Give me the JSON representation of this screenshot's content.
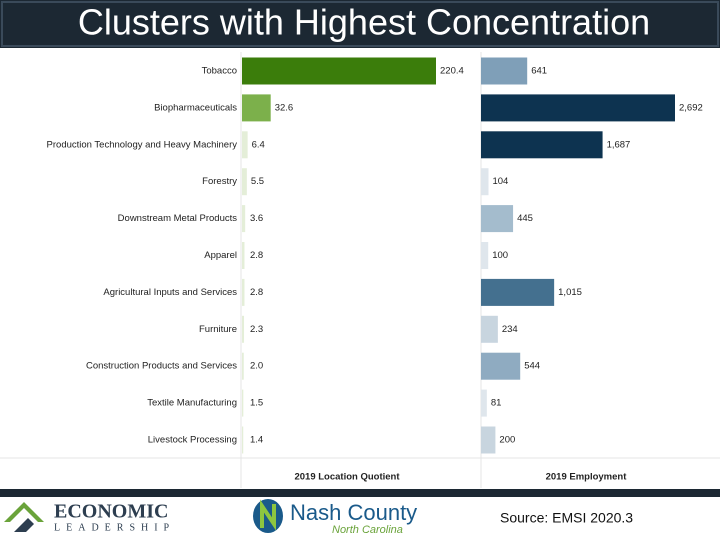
{
  "chart_data": {
    "type": "bar",
    "title": "Clusters with Highest Concentration",
    "categories": [
      "Tobacco",
      "Biopharmaceuticals",
      "Production Technology and Heavy Machinery",
      "Forestry",
      "Downstream Metal Products",
      "Apparel",
      "Agricultural Inputs and Services",
      "Furniture",
      "Construction Products and Services",
      "Textile Manufacturing",
      "Livestock Processing"
    ],
    "series": [
      {
        "name": "2019 Location Quotient",
        "values": [
          220.4,
          32.6,
          6.4,
          5.5,
          3.6,
          2.8,
          2.8,
          2.3,
          2.0,
          1.5,
          1.4
        ],
        "value_labels": [
          "220.4",
          "32.6",
          "6.4",
          "5.5",
          "3.6",
          "2.8",
          "2.8",
          "2.3",
          "2.0",
          "1.5",
          "1.4"
        ],
        "colors": [
          "#3b7d0b",
          "#7cb04b",
          "#e4eed8",
          "#e4eed8",
          "#e4eed8",
          "#e4eed8",
          "#e4eed8",
          "#e4eed8",
          "#e4eed8",
          "#e4eed8",
          "#e4eed8"
        ]
      },
      {
        "name": "2019 Employment",
        "values": [
          641,
          2692,
          1687,
          104,
          445,
          100,
          1015,
          234,
          544,
          81,
          200
        ],
        "value_labels": [
          "641",
          "2,692",
          "1,687",
          "104",
          "445",
          "100",
          "1,015",
          "234",
          "544",
          "81",
          "200"
        ],
        "colors": [
          "#7f9fb8",
          "#0d3350",
          "#0d3350",
          "#dfe6ec",
          "#a4bccd",
          "#dfe6ec",
          "#44708f",
          "#c8d5df",
          "#8fabc1",
          "#dfe6ec",
          "#c8d5df"
        ]
      }
    ]
  },
  "footer": {
    "logo1": "ECONOMIC",
    "logo1_sub": "LEADERSHIP",
    "logo2": "Nash County",
    "logo2_sub": "North Carolina",
    "source": "Source: EMSI 2020.3"
  }
}
